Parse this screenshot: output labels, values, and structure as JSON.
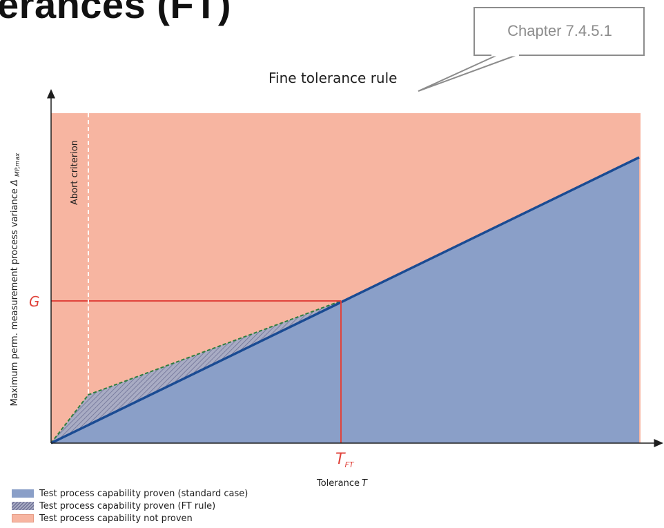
{
  "page": {
    "heading_fragment": "erances (FT)",
    "chapter_ref": "Chapter 7.4.5.1",
    "callout_text": "Fine tolerance rule"
  },
  "diagram": {
    "y_axis_label": "Maximum perm. measurement process variance",
    "y_axis_symbol": "Δ",
    "y_axis_subscript": "MP,max",
    "x_axis_label": "Tolerance",
    "x_axis_symbol": "T",
    "g_label": "G",
    "tft_label": "T",
    "tft_subscript": "FT",
    "abort_label": "Abort criterion"
  },
  "legend": [
    {
      "text": "Test process capability proven (standard case)"
    },
    {
      "text": "Test process capability proven (FT rule)"
    },
    {
      "text": "Test process capability not proven"
    }
  ],
  "colors": {
    "region_not_proven": "#f7b5a1",
    "region_standard": "#8a9fc8",
    "standard_line": "#1a4b93",
    "ft_boundary": "#2f7d3e",
    "g_tft_lines": "#e0433b",
    "abort_line": "#ffffff"
  }
}
